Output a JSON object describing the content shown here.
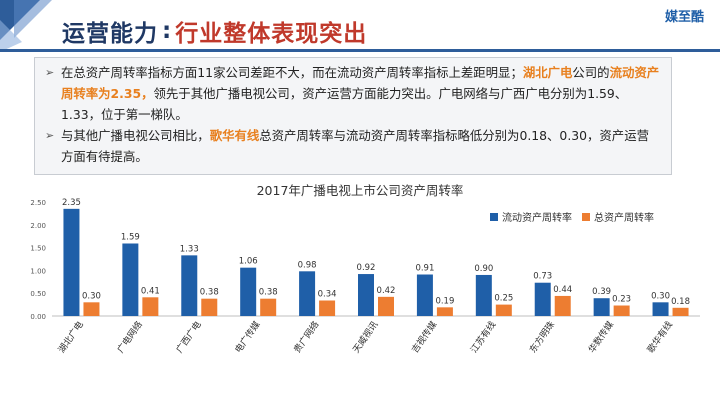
{
  "header": {
    "title": "运营能力",
    "separator": ":",
    "subtitle": "行业整体表现突出",
    "brand": "媒至酷"
  },
  "bullets": [
    {
      "segments": [
        {
          "text": "在总资产周转率指标方面11家公司差距不大，而在流动资产周转率指标上差距明显；",
          "highlight": false
        },
        {
          "text": "湖北广电",
          "highlight": true
        },
        {
          "text": "公司的",
          "highlight": false
        },
        {
          "text": "流动资产周转率为2.35，",
          "highlight": true
        },
        {
          "text": "领先于其他广播电视公司，资产运营方面能力突出。广电网络与广西广电分别为1.59、1.33，位于第一梯队。",
          "highlight": false
        }
      ]
    },
    {
      "segments": [
        {
          "text": "与其他广播电视公司相比，",
          "highlight": false
        },
        {
          "text": "歌华有线",
          "highlight": true
        },
        {
          "text": "总资产周转率与流动资产周转率指标略低分别为0.18、0.30，资产运营方面有待提高。",
          "highlight": false
        }
      ]
    }
  ],
  "colors": {
    "primary": "#1f3864",
    "accent_red": "#c0392b",
    "highlight_orange": "#e8801f",
    "series_blue": "#1f5fa8",
    "series_orange": "#ed7d31"
  },
  "chart_data": {
    "type": "bar",
    "title": "2017年广播电视上市公司资产周转率",
    "categories": [
      "湖北广电",
      "广电网络",
      "广西广电",
      "电广传媒",
      "贵广网络",
      "天威视讯",
      "吉视传媒",
      "江苏有线",
      "东方明珠",
      "华数传媒",
      "歌华有线"
    ],
    "series": [
      {
        "name": "流动资产周转率",
        "values": [
          2.35,
          1.59,
          1.33,
          1.06,
          0.98,
          0.92,
          0.91,
          0.9,
          0.73,
          0.39,
          0.3
        ],
        "labels": [
          "2.35",
          "1.59",
          "1.33",
          "1.06",
          "0.98",
          "0.92",
          "0.91",
          "0.90",
          "0.73",
          "0.39",
          "0.30"
        ],
        "color": "#1f5fa8"
      },
      {
        "name": "总资产周转率",
        "values": [
          0.3,
          0.41,
          0.38,
          0.38,
          0.34,
          0.42,
          0.19,
          0.25,
          0.44,
          0.23,
          0.18
        ],
        "labels": [
          "0.30",
          "0.41",
          "0.38",
          "0.38",
          "0.34",
          "0.42",
          "0.19",
          "0.25",
          "0.44",
          "0.23",
          "0.18"
        ],
        "color": "#ed7d31"
      }
    ],
    "ylim": [
      0,
      2.5
    ],
    "yticks": [
      "0.00",
      "0.50",
      "1.00",
      "1.50",
      "2.00",
      "2.50"
    ],
    "legend": "top-right",
    "grid": false
  }
}
